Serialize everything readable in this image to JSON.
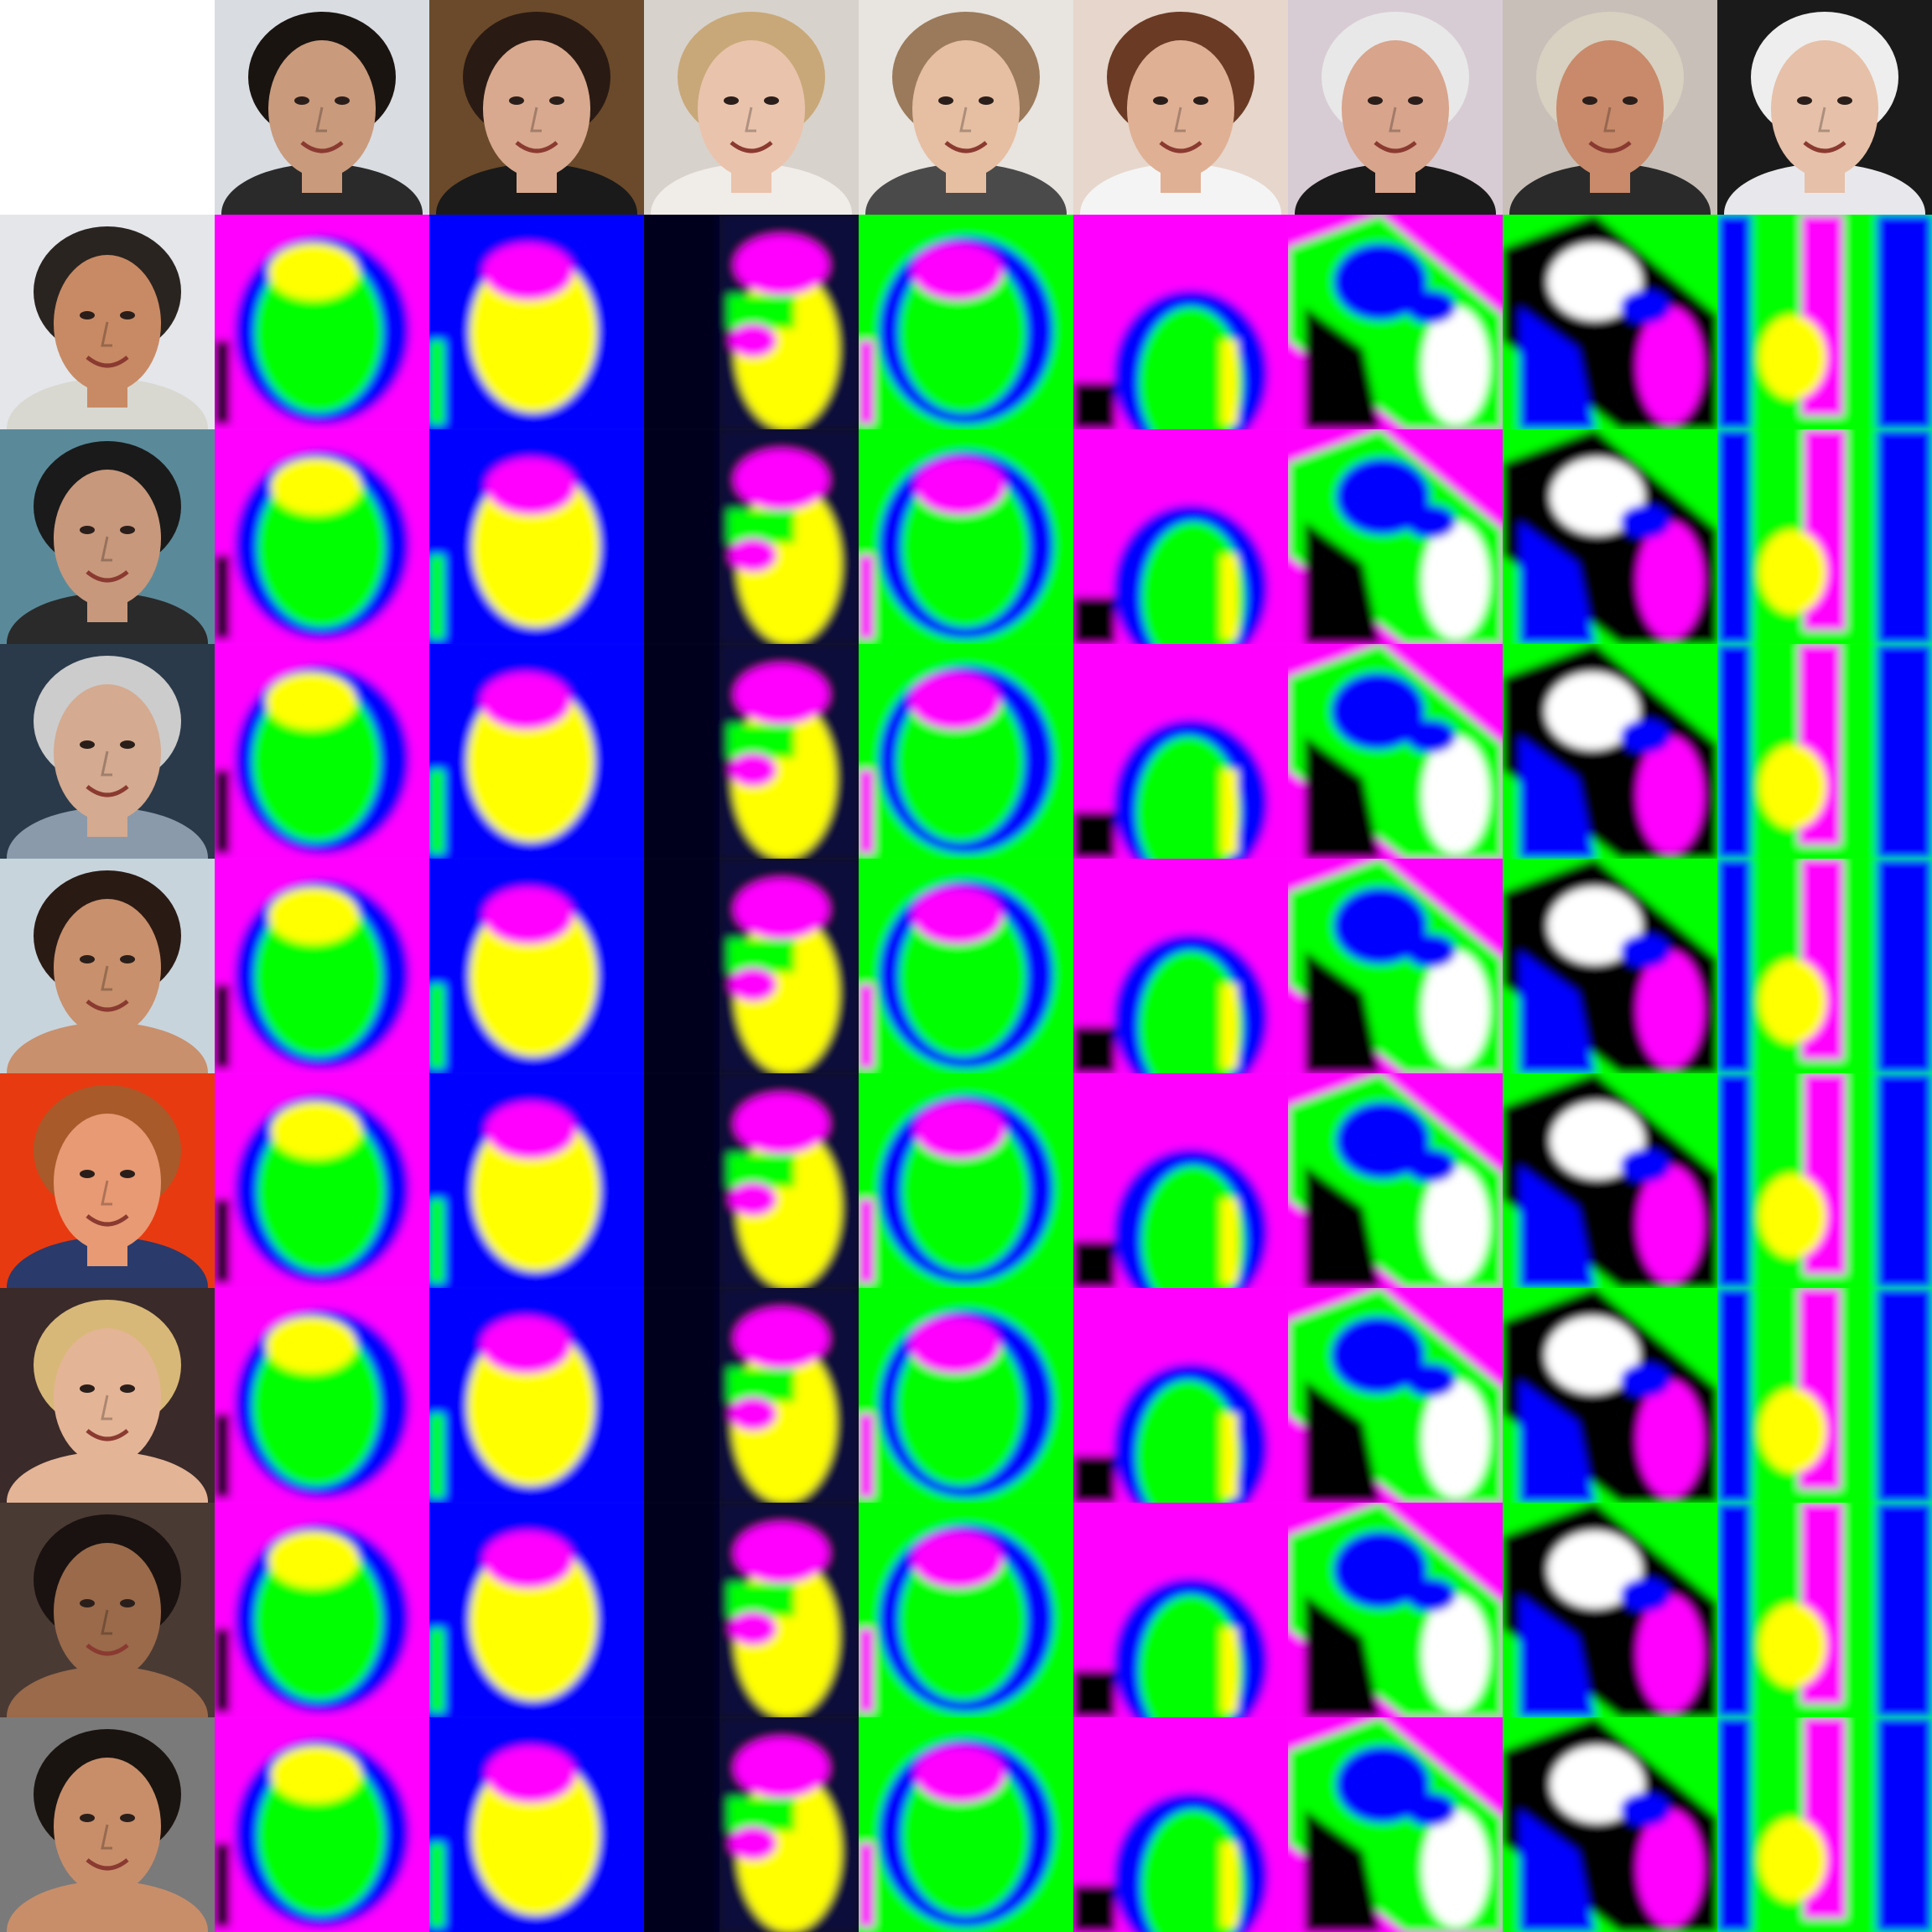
{
  "grid": {
    "rows": 9,
    "columns": 9,
    "top_left_blank": true
  },
  "column_faces": [
    {
      "skin": "#c99a7c",
      "hair": "#1a1410",
      "bg": "#d9dde2",
      "shirt": "#2a2a2a"
    },
    {
      "skin": "#d8a98e",
      "hair": "#2a1a14",
      "bg": "#6a4a2a",
      "shirt": "#1a1a1a"
    },
    {
      "skin": "#eac3ac",
      "hair": "#c8a878",
      "bg": "#d8d2cc",
      "shirt": "#f0ece8"
    },
    {
      "skin": "#e6bea2",
      "hair": "#9a7a5a",
      "bg": "#e8e4e0",
      "shirt": "#4a4a4a"
    },
    {
      "skin": "#e0b094",
      "hair": "#6a3a24",
      "bg": "#e6d6cc",
      "shirt": "#f4f4f4"
    },
    {
      "skin": "#d8a48c",
      "hair": "#e8e8e8",
      "bg": "#d8ccd4",
      "shirt": "#1a1a1a"
    },
    {
      "skin": "#c88a6a",
      "hair": "#d8d0c0",
      "bg": "#c8c0b8",
      "shirt": "#2a2a2a"
    },
    {
      "skin": "#e6c0a8",
      "hair": "#eeeeee",
      "bg": "#1a1a1a",
      "shirt": "#e8e8ec"
    }
  ],
  "row_faces": [
    {
      "skin": "#c88a64",
      "hair": "#2a2420",
      "bg": "#e4e6ea",
      "shirt": "#d8d8d0"
    },
    {
      "skin": "#c8987c",
      "hair": "#1a1a1a",
      "bg": "#5a8a9a",
      "shirt": "#2a2a2a"
    },
    {
      "skin": "#d4aa90",
      "hair": "#cccccc",
      "bg": "#2a3a4a",
      "shirt": "#8a9aaa"
    },
    {
      "skin": "#c8906c",
      "hair": "#2a1a14",
      "bg": "#c8d4dc",
      "shirt": "#c8906c"
    },
    {
      "skin": "#e89a74",
      "hair": "#a85a2a",
      "bg": "#e83a10",
      "shirt": "#2a3a6a"
    },
    {
      "skin": "#e4b496",
      "hair": "#d8b878",
      "bg": "#3a2a2a",
      "shirt": "#e4b496"
    },
    {
      "skin": "#9a6a4a",
      "hair": "#1a1210",
      "bg": "#4a3a34",
      "shirt": "#9a6a4a"
    },
    {
      "skin": "#c88e6a",
      "hair": "#1a1410",
      "bg": "#7a7a7a",
      "shirt": "#c88e6a"
    }
  ],
  "heatmap_palette": [
    "#ff00ff",
    "#00ff00",
    "#ffff00",
    "#0000ff",
    "#000000",
    "#ffffff",
    "#00ffff",
    "#ff0000"
  ],
  "column_heatmaps": [
    {
      "bg": "#ff00ff",
      "ring": "#0000ff",
      "blob": "#00ff00",
      "cap": "#ffff00",
      "accent": "#000000",
      "layout": "oval"
    },
    {
      "bg": "#0000ff",
      "ring": "#0000ff",
      "blob": "#ffff00",
      "cap": "#ff00ff",
      "accent": "#00ff00",
      "layout": "oval"
    },
    {
      "bg": "#00001a",
      "ring": "#00001a",
      "blob": "#ffff00",
      "cap": "#ff00ff",
      "accent": "#00ff00",
      "layout": "side"
    },
    {
      "bg": "#00ff00",
      "ring": "#0000ff",
      "blob": "#00ff00",
      "cap": "#ff00ff",
      "accent": "#ff00ff",
      "layout": "oval"
    },
    {
      "bg": "#ff00ff",
      "ring": "#ff00ff",
      "blob": "#00ff00",
      "cap": "#ff00ff",
      "accent": "#0000ff",
      "layout": "low"
    },
    {
      "bg": "#ff00ff",
      "ring": "#00ff00",
      "blob": "#ffffff",
      "cap": "#0000ff",
      "accent": "#000000",
      "layout": "diag"
    },
    {
      "bg": "#00ff00",
      "ring": "#000000",
      "blob": "#ff00ff",
      "cap": "#ffffff",
      "accent": "#0000ff",
      "layout": "diag"
    },
    {
      "bg": "#00ff00",
      "ring": "#0000ff",
      "blob": "#ffff00",
      "cap": "#ff00ff",
      "accent": "#0000ff",
      "layout": "tall"
    }
  ]
}
